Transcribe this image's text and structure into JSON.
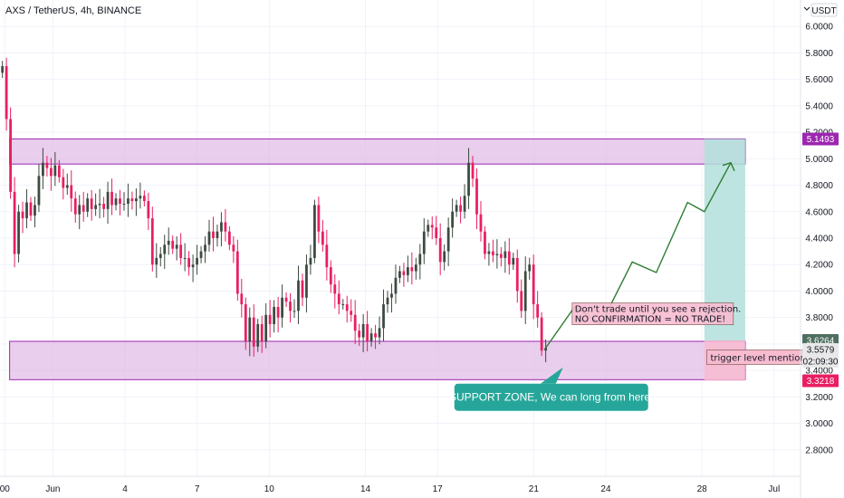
{
  "header": {
    "symbol": "AXS / TetherUS, 4h, BINANCE",
    "currency": "USDT",
    "scale_icon": "chevron-down-icon"
  },
  "colors": {
    "up": "#26a69a",
    "down": "#ef5350",
    "candle_up": "#3d4a40",
    "candle_down": "#e91e63",
    "zone_fill": "#e1bee7",
    "zone_border": "#9c27b0",
    "target_fill": "#b2dfdb",
    "stop_fill": "#f8bbd0",
    "arrow": "#2e7d32",
    "callout": "#26a69a"
  },
  "chart_data": {
    "type": "candlestick",
    "title": "AXS / TetherUS, 4h, BINANCE",
    "ylim": [
      2.6,
      6.2
    ],
    "y_ticks": [
      "6.0000",
      "5.8000",
      "5.6000",
      "5.4000",
      "5.2000",
      "5.0000",
      "4.8000",
      "4.6000",
      "4.4000",
      "4.2000",
      "4.0000",
      "3.8000",
      "3.6000",
      "3.4000",
      "3.2000",
      "3.0000",
      "2.8000"
    ],
    "x_ticks": [
      {
        "label": "00",
        "day": -1
      },
      {
        "label": "Jun",
        "day": 1
      },
      {
        "label": "4",
        "day": 4
      },
      {
        "label": "7",
        "day": 7
      },
      {
        "label": "10",
        "day": 10
      },
      {
        "label": "14",
        "day": 14
      },
      {
        "label": "17",
        "day": 17
      },
      {
        "label": "21",
        "day": 21
      },
      {
        "label": "24",
        "day": 24
      },
      {
        "label": "28",
        "day": 28
      },
      {
        "label": "Jul",
        "day": 31
      }
    ],
    "x_range_days": [
      -1.2,
      32.1
    ],
    "candles_start_day": -1.1,
    "candles_end_day": 21.5,
    "closes": [
      5.7,
      5.3,
      4.75,
      4.28,
      4.6,
      4.55,
      4.67,
      4.57,
      4.65,
      4.87,
      4.97,
      4.93,
      4.87,
      4.95,
      4.86,
      4.78,
      4.8,
      4.7,
      4.58,
      4.65,
      4.6,
      4.7,
      4.62,
      4.65,
      4.66,
      4.62,
      4.75,
      4.65,
      4.7,
      4.66,
      4.66,
      4.7,
      4.68,
      4.7,
      4.72,
      4.68,
      4.55,
      4.2,
      4.25,
      4.28,
      4.35,
      4.38,
      4.32,
      4.35,
      4.25,
      4.25,
      4.18,
      4.2,
      4.25,
      4.3,
      4.35,
      4.45,
      4.4,
      4.45,
      4.52,
      4.45,
      4.35,
      4.3,
      3.98,
      3.9,
      3.62,
      3.8,
      3.58,
      3.75,
      3.62,
      3.82,
      3.75,
      3.88,
      3.8,
      3.95,
      3.92,
      3.85,
      3.85,
      4.08,
      3.95,
      4.2,
      4.25,
      4.65,
      4.45,
      4.35,
      4.18,
      4.05,
      3.98,
      3.9,
      3.9,
      3.85,
      3.82,
      3.7,
      3.65,
      3.75,
      3.62,
      3.68,
      3.65,
      3.72,
      3.9,
      3.95,
      3.98,
      4.1,
      4.15,
      4.12,
      4.18,
      4.15,
      4.2,
      4.28,
      4.45,
      4.5,
      4.48,
      4.4,
      4.22,
      4.3,
      4.48,
      4.6,
      4.65,
      4.6,
      4.72,
      4.97,
      4.85,
      4.58,
      4.45,
      4.28,
      4.3,
      4.27,
      4.28,
      4.25,
      4.3,
      4.2,
      4.25,
      4.0,
      3.85,
      4.15,
      4.2,
      3.9,
      3.8,
      3.55,
      3.57
    ],
    "zones": [
      {
        "name": "resistance",
        "y1": 4.96,
        "y2": 5.15,
        "day1": -0.8,
        "day2": 29.8
      },
      {
        "name": "support",
        "y1": 3.33,
        "y2": 3.62,
        "day1": -0.8,
        "day2": 29.8
      }
    ],
    "position": {
      "entry": 3.6264,
      "target": 5.1493,
      "stop": 3.3218,
      "day1": 28.1,
      "day2": 29.8
    },
    "projection_path": [
      {
        "day": 21.5,
        "y": 3.57
      },
      {
        "day": 22.7,
        "y": 3.88
      },
      {
        "day": 23.8,
        "y": 3.75
      },
      {
        "day": 25.1,
        "y": 4.22
      },
      {
        "day": 26.1,
        "y": 4.14
      },
      {
        "day": 27.4,
        "y": 4.67
      },
      {
        "day": 28.1,
        "y": 4.6
      },
      {
        "day": 29.2,
        "y": 4.97
      }
    ],
    "price_tags": [
      {
        "label": "5.1493",
        "y": 5.1493,
        "color": "#9c27b0"
      },
      {
        "label": "3.6264",
        "y": 3.6264,
        "color": "#4f6f60"
      },
      {
        "label": "3.5579",
        "y": 3.5579,
        "color": "#e8e8e8",
        "text": "#131722"
      },
      {
        "label": "02:09:30",
        "y": 3.47,
        "color": "#e8e8e8",
        "text": "#131722"
      },
      {
        "label": "3.3218",
        "y": 3.3218,
        "color": "#e91e63"
      }
    ],
    "annotations": {
      "note_line1": "Don't trade until you see a rejection.",
      "note_line2": "NO CONFIRMATION = NO TRADE!",
      "trigger": "trigger level mentioned.",
      "callout": "SUPPORT ZONE, We can long from here."
    }
  }
}
